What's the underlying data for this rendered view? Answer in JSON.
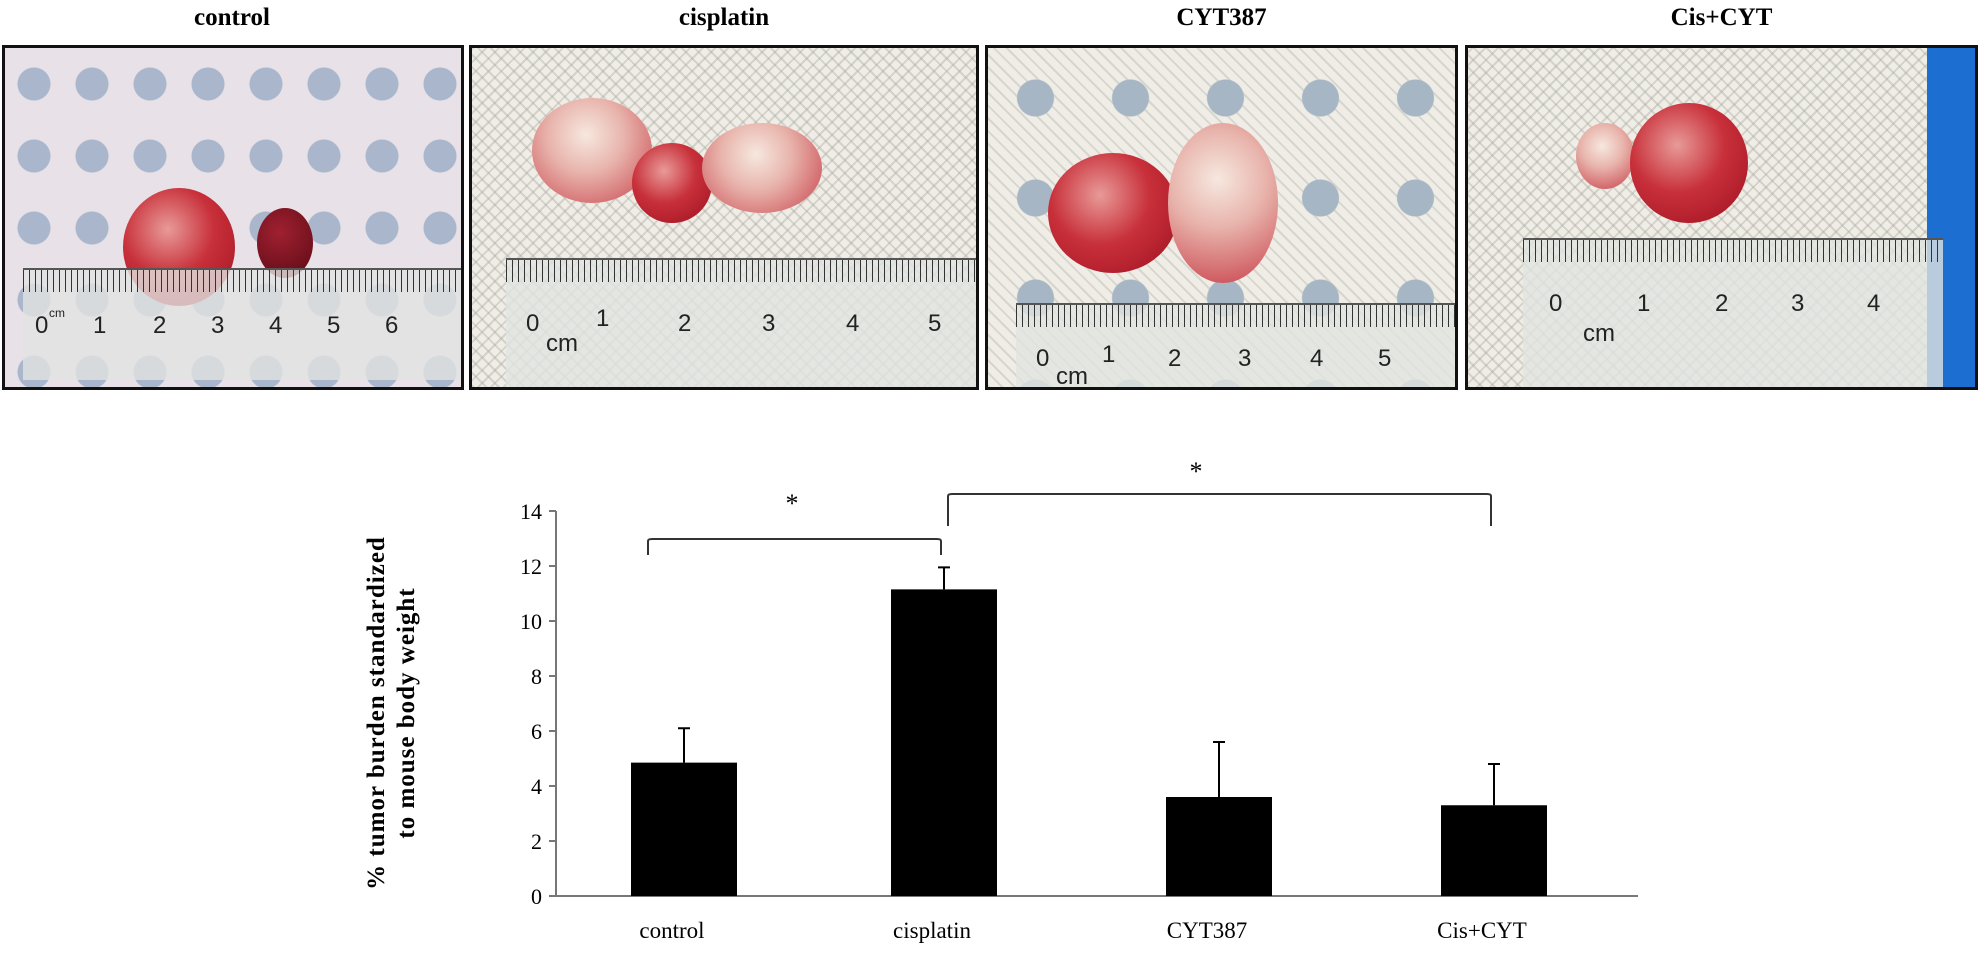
{
  "panels": [
    {
      "label": "control",
      "ruler_labels": [
        "0",
        "cm",
        "1",
        "2",
        "3",
        "4",
        "5",
        "6"
      ]
    },
    {
      "label": "cisplatin",
      "ruler_labels": [
        "0",
        "cm",
        "1",
        "2",
        "3",
        "4",
        "5"
      ]
    },
    {
      "label": "CYT387",
      "ruler_labels": [
        "0",
        "cm",
        "1",
        "2",
        "3",
        "4",
        "5"
      ]
    },
    {
      "label": "Cis+CYT",
      "ruler_labels": [
        "0",
        "cm",
        "1",
        "2",
        "3",
        "4"
      ]
    }
  ],
  "chart_data": {
    "type": "bar",
    "categories": [
      "control",
      "cisplatin",
      "CYT387",
      "Cis+CYT"
    ],
    "values": [
      4.85,
      11.15,
      3.6,
      3.3
    ],
    "error_upper": [
      6.1,
      11.95,
      5.6,
      4.8
    ],
    "ylabel_line1": "% tumor burden standardized",
    "ylabel_line2": "to mouse body weight",
    "xlabel": "",
    "ylim": [
      0,
      14
    ],
    "yticks": [
      0,
      2,
      4,
      6,
      8,
      10,
      12,
      14
    ],
    "bar_color": "#000000",
    "grid": false,
    "significance": [
      {
        "from": "control",
        "to": "cisplatin",
        "label": "*"
      },
      {
        "from": "cisplatin",
        "to": "Cis+CYT",
        "label": "*"
      }
    ]
  }
}
